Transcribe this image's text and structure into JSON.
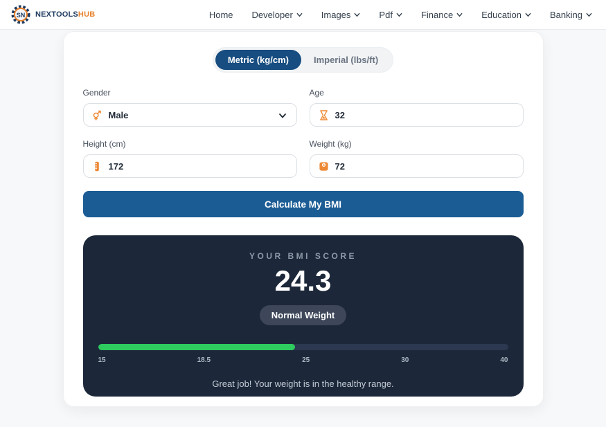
{
  "brand": {
    "name_primary": "NEXTOOLS",
    "name_accent": "HUB"
  },
  "nav": {
    "items": [
      {
        "label": "Home",
        "dropdown": false
      },
      {
        "label": "Developer",
        "dropdown": true
      },
      {
        "label": "Images",
        "dropdown": true
      },
      {
        "label": "Pdf",
        "dropdown": true
      },
      {
        "label": "Finance",
        "dropdown": true
      },
      {
        "label": "Education",
        "dropdown": true
      },
      {
        "label": "Banking",
        "dropdown": true
      }
    ]
  },
  "calculator": {
    "tabs": [
      {
        "label": "Metric (kg/cm)",
        "active": true
      },
      {
        "label": "Imperial (lbs/ft)",
        "active": false
      }
    ],
    "fields": {
      "gender": {
        "label": "Gender",
        "value": "Male",
        "icon": "gender-icon"
      },
      "age": {
        "label": "Age",
        "value": "32",
        "icon": "hourglass-icon"
      },
      "height": {
        "label": "Height (cm)",
        "value": "172",
        "icon": "ruler-icon"
      },
      "weight": {
        "label": "Weight (kg)",
        "value": "72",
        "icon": "scale-icon"
      }
    },
    "submit_label": "Calculate My BMI"
  },
  "result": {
    "title": "YOUR BMI SCORE",
    "score": "24.3",
    "category": "Normal Weight",
    "message": "Great job! Your weight is in the healthy range.",
    "scale_labels": [
      "15",
      "18.5",
      "25",
      "30",
      "40"
    ],
    "progress_percent": 48
  },
  "colors": {
    "accent_blue_button": "#1b5c94",
    "toggle_active_blue": "#174d80",
    "icon_orange": "#ed8936",
    "result_card_bg": "#1c2839",
    "bar_fill_green": "#2ecc5e",
    "bar_track": "#2c3850",
    "brand_navy": "#1d3a5f",
    "brand_orange": "#e8822d"
  }
}
